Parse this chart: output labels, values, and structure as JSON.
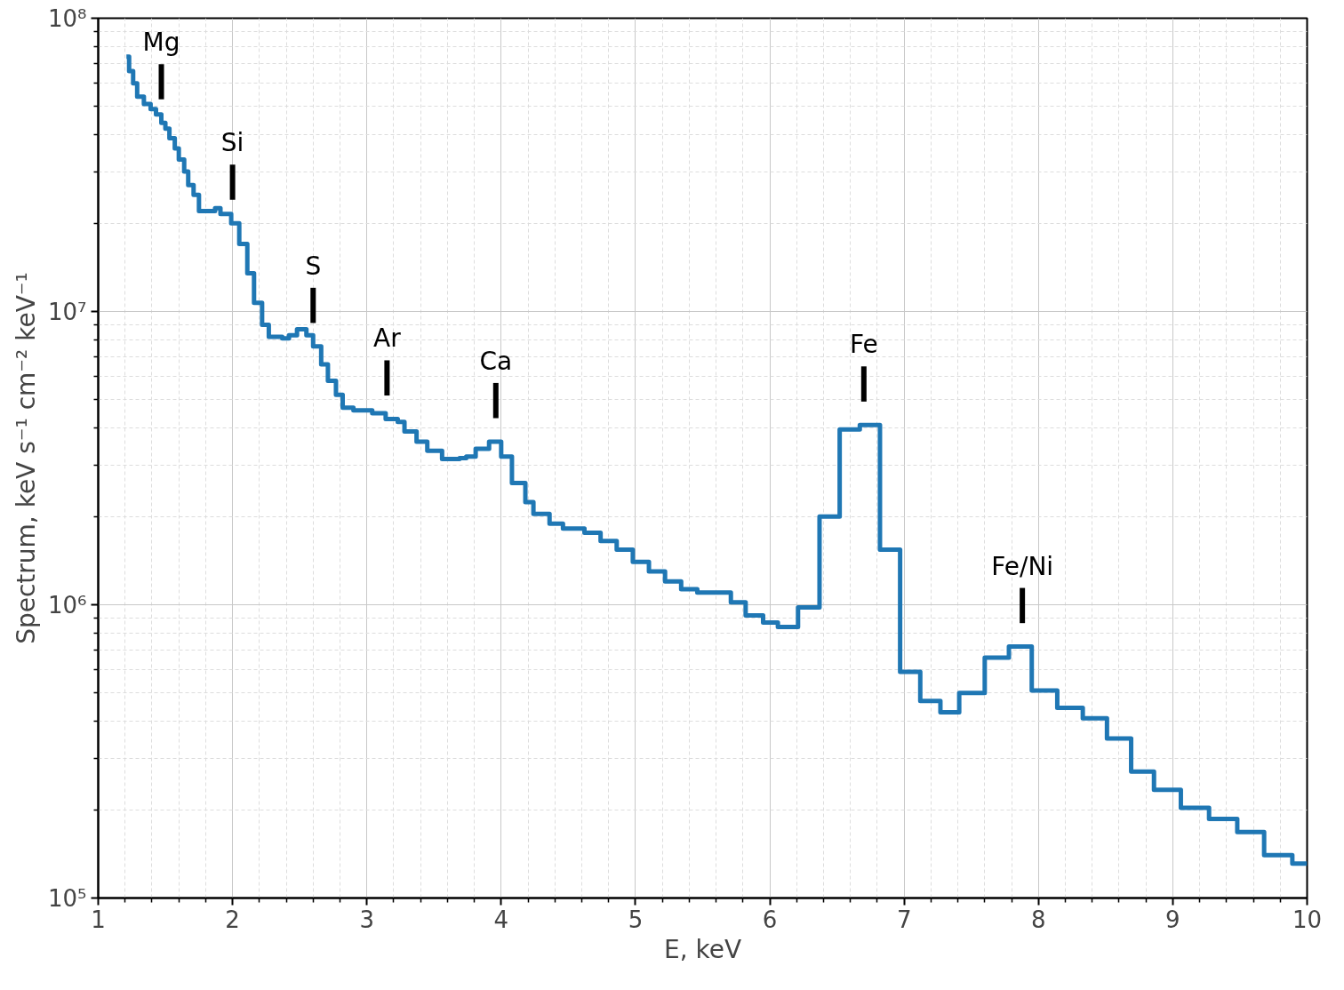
{
  "chart_data": {
    "type": "step",
    "xlabel": "E, keV",
    "ylabel": "Spectrum, keV s⁻¹ cm⁻² keV⁻¹",
    "log": "y",
    "grid": true,
    "xlim": [
      1,
      10
    ],
    "xticks": [
      1,
      2,
      3,
      4,
      5,
      6,
      7,
      8,
      9,
      10
    ],
    "ylim": [
      100000,
      100000000
    ],
    "yticks": [
      {
        "value": 100000,
        "label": "10⁵"
      },
      {
        "value": 1000000,
        "label": "10⁶"
      },
      {
        "value": 10000000,
        "label": "10⁷"
      },
      {
        "value": 100000000,
        "label": "10⁸"
      }
    ],
    "x": [
      1.21,
      1.23,
      1.26,
      1.29,
      1.34,
      1.39,
      1.43,
      1.47,
      1.5,
      1.53,
      1.57,
      1.6,
      1.64,
      1.67,
      1.71,
      1.75,
      1.87,
      1.91,
      1.99,
      2.05,
      2.11,
      2.16,
      2.22,
      2.27,
      2.37,
      2.42,
      2.48,
      2.55,
      2.6,
      2.66,
      2.71,
      2.77,
      2.82,
      2.9,
      3.04,
      3.14,
      3.23,
      3.28,
      3.37,
      3.45,
      3.56,
      3.69,
      3.74,
      3.81,
      3.91,
      4.0,
      4.08,
      4.18,
      4.24,
      4.36,
      4.46,
      4.62,
      4.74,
      4.86,
      4.98,
      5.1,
      5.22,
      5.34,
      5.46,
      5.58,
      5.71,
      5.82,
      5.95,
      6.06,
      6.21,
      6.37,
      6.52,
      6.67,
      6.82,
      6.97,
      7.12,
      7.27,
      7.41,
      7.6,
      7.78,
      7.95,
      8.14,
      8.33,
      8.51,
      8.69,
      8.86,
      9.06,
      9.27,
      9.48,
      9.68,
      9.89,
      10
    ],
    "series": [
      {
        "color": "#1f77b4",
        "values": [
          74000000,
          66000000,
          60000000,
          54000000,
          51000000,
          49000000,
          47000000,
          44000000,
          42000000,
          39000000,
          36000000,
          33000000,
          30000000,
          27000000,
          25000000,
          22000000,
          22500000,
          21500000,
          20000000,
          17000000,
          13500000,
          10700000,
          9000000,
          8200000,
          8100000,
          8300000,
          8700000,
          8300000,
          7600000,
          6600000,
          5800000,
          5200000,
          4700000,
          4600000,
          4500000,
          4300000,
          4200000,
          3900000,
          3600000,
          3350000,
          3140000,
          3160000,
          3200000,
          3400000,
          3600000,
          3200000,
          2600000,
          2240000,
          2040000,
          1890000,
          1820000,
          1760000,
          1650000,
          1540000,
          1400000,
          1300000,
          1200000,
          1130000,
          1100000,
          1100000,
          1020000,
          920000,
          870000,
          840000,
          980000,
          2000000,
          3960000,
          4100000,
          1540000,
          590000,
          470000,
          430000,
          500000,
          660000,
          720000,
          510000,
          445000,
          410000,
          350000,
          270000,
          234000,
          203000,
          186000,
          168000,
          140000,
          131000,
          131000
        ]
      }
    ],
    "annotations": [
      {
        "text": "Mg",
        "x": 1.47,
        "y": 44000000
      },
      {
        "text": "Si",
        "x": 2.0,
        "y": 20000000
      },
      {
        "text": "S",
        "x": 2.6,
        "y": 7600000
      },
      {
        "text": "Ar",
        "x": 3.15,
        "y": 4300000
      },
      {
        "text": "Ca",
        "x": 3.96,
        "y": 3600000
      },
      {
        "text": "Fe",
        "x": 6.7,
        "y": 4100000
      },
      {
        "text": "Fe/Ni",
        "x": 7.88,
        "y": 720000
      }
    ]
  }
}
